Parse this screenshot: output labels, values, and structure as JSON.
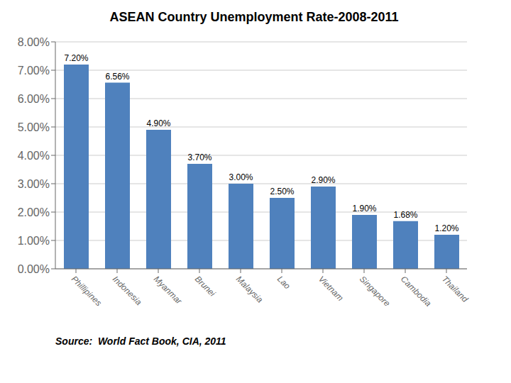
{
  "chart_data": {
    "type": "bar",
    "title": "ASEAN Country Unemployment Rate-2008-2011",
    "categories": [
      "Phillipines",
      "Indonesia",
      "Myanmar",
      "Brunei",
      "Malaysia",
      "Lao",
      "Vietnam",
      "Singapore",
      "Cambodia",
      "Thailand"
    ],
    "values": [
      7.2,
      6.56,
      4.9,
      3.7,
      3.0,
      2.5,
      2.9,
      1.9,
      1.68,
      1.2
    ],
    "value_labels": [
      "7.20%",
      "6.56%",
      "4.90%",
      "3.70%",
      "3.00%",
      "2.50%",
      "2.90%",
      "1.90%",
      "1.68%",
      "1.20%"
    ],
    "data_labels": true,
    "color": "#4F81BD",
    "ylim": [
      0,
      8.0
    ],
    "yticks": [
      {
        "value": 0.0,
        "label": "0.00%"
      },
      {
        "value": 1.0,
        "label": "1.00%"
      },
      {
        "value": 2.0,
        "label": "2.00%"
      },
      {
        "value": 3.0,
        "label": "3.00%"
      },
      {
        "value": 4.0,
        "label": "4.00%"
      },
      {
        "value": 5.0,
        "label": "5.00%"
      },
      {
        "value": 6.0,
        "label": "6.00%"
      },
      {
        "value": 7.0,
        "label": "7.00%"
      },
      {
        "value": 8.0,
        "label": "8.00%"
      }
    ],
    "grid": true,
    "annotations": [
      "Source:  World Fact Book, CIA, 2011"
    ]
  }
}
